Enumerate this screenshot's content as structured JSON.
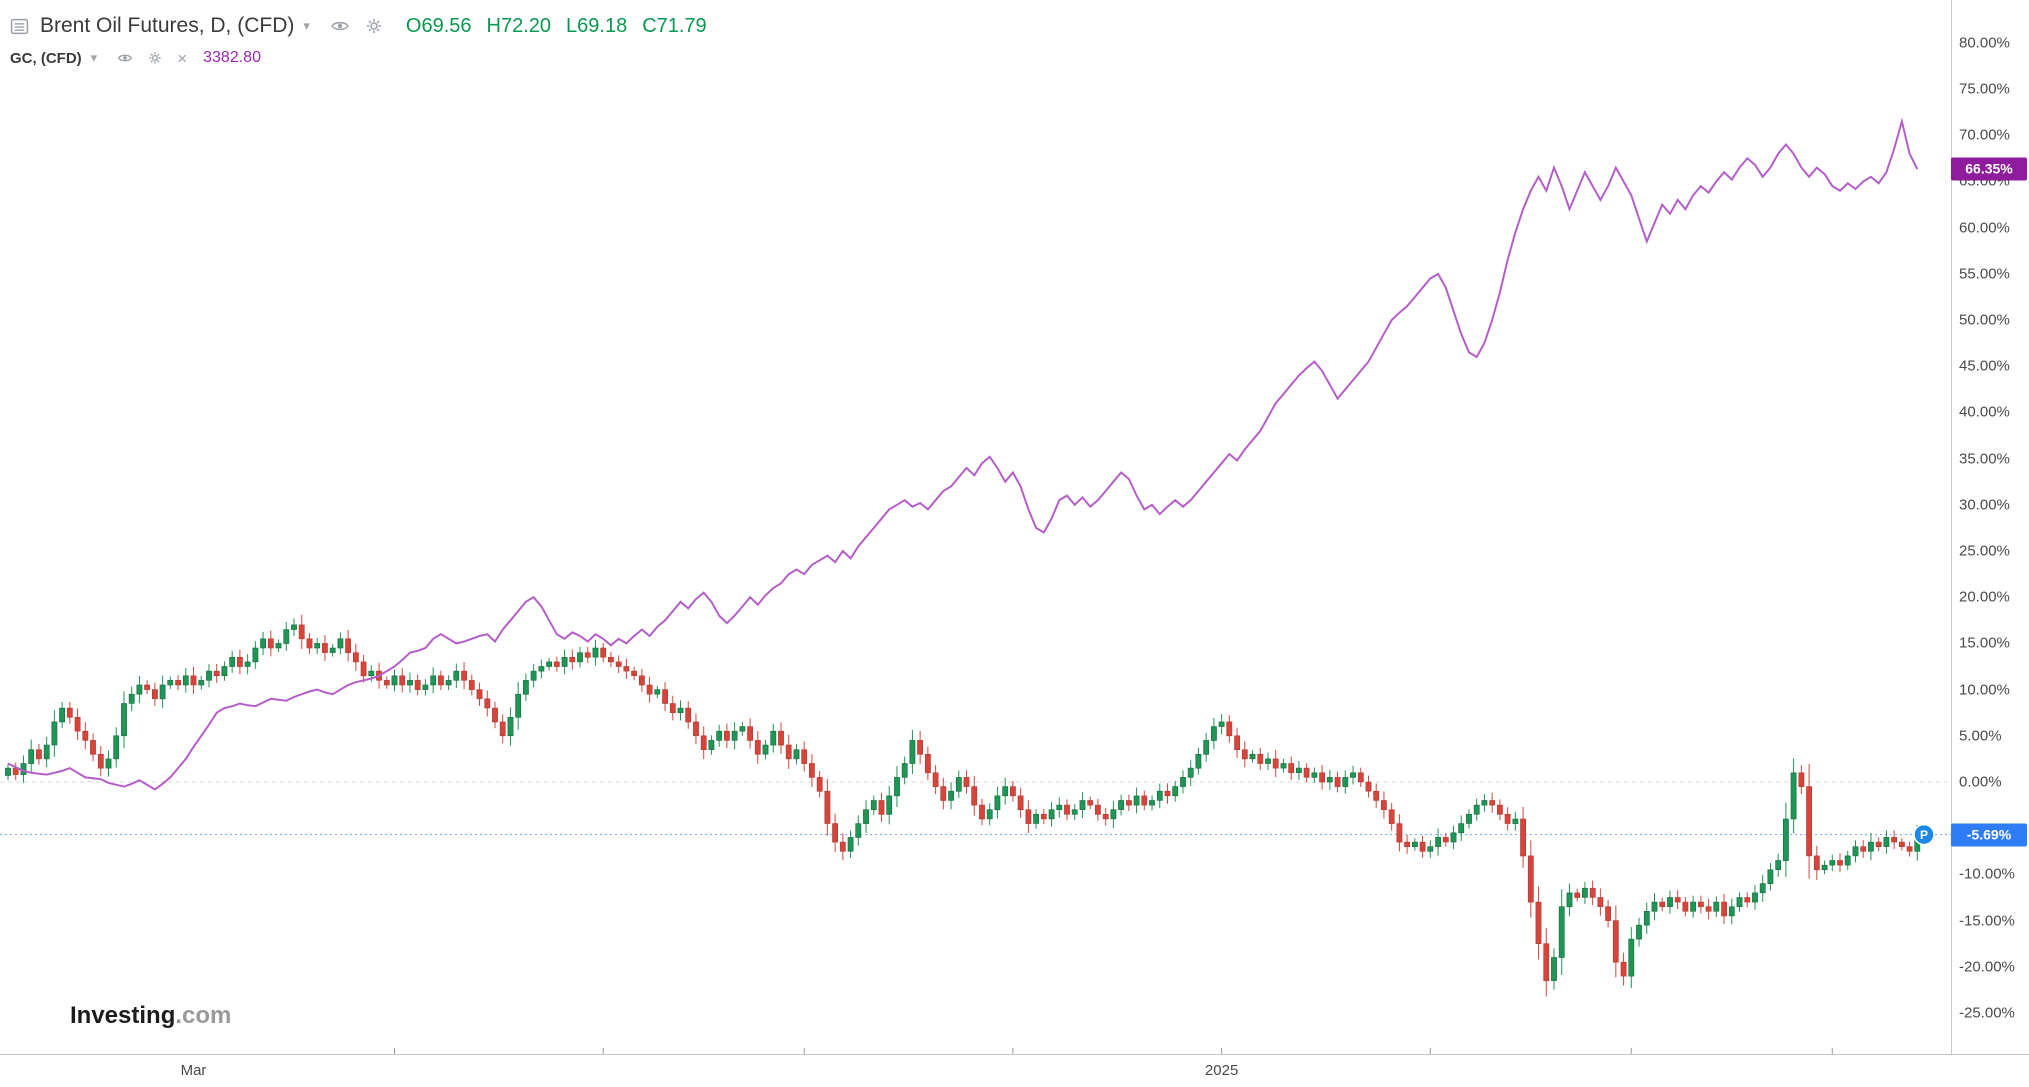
{
  "header": {
    "symbol_title": "Brent Oil Futures, D, (CFD)",
    "ohlc": [
      "O69.56",
      "H72.20",
      "L69.18",
      "C71.79"
    ],
    "overlay_title": "GC, (CFD)",
    "overlay_value": "3382.80"
  },
  "icons": {
    "caret": "▾",
    "close": "×"
  },
  "badges": {
    "gold": "66.35%",
    "brent": "-5.69%",
    "marker": "P"
  },
  "logo": {
    "main": "Investing",
    "suffix": ".com"
  },
  "axes": {
    "y_labels": [
      {
        "value": 80,
        "label": "80.00%"
      },
      {
        "value": 75,
        "label": "75.00%"
      },
      {
        "value": 70,
        "label": "70.00%"
      },
      {
        "value": 65,
        "label": "65.00%"
      },
      {
        "value": 60,
        "label": "60.00%"
      },
      {
        "value": 55,
        "label": "55.00%"
      },
      {
        "value": 50,
        "label": "50.00%"
      },
      {
        "value": 45,
        "label": "45.00%"
      },
      {
        "value": 40,
        "label": "40.00%"
      },
      {
        "value": 35,
        "label": "35.00%"
      },
      {
        "value": 30,
        "label": "30.00%"
      },
      {
        "value": 25,
        "label": "25.00%"
      },
      {
        "value": 20,
        "label": "20.00%"
      },
      {
        "value": 15,
        "label": "15.00%"
      },
      {
        "value": 10,
        "label": "10.00%"
      },
      {
        "value": 5,
        "label": "5.00%"
      },
      {
        "value": 0,
        "label": "0.00%"
      },
      {
        "value": -10,
        "label": "-10.00%"
      },
      {
        "value": -15,
        "label": "-15.00%"
      },
      {
        "value": -20,
        "label": "-20.00%"
      },
      {
        "value": -25,
        "label": "-25.00%"
      }
    ],
    "x_labels": [
      {
        "label": "Mar",
        "day": 24
      },
      {
        "label": "2025",
        "day": 157
      }
    ],
    "x_ticks_days": [
      50,
      77,
      103,
      130,
      157,
      184,
      210,
      236
    ]
  },
  "colors": {
    "up": "#1f9556",
    "up_stroke": "#146b3e",
    "down": "#d6453c",
    "down_stroke": "#b03830",
    "gold_line": "#b45fc8",
    "gold_badge_bg": "#8e1c9c",
    "brent_badge_bg": "#2f7df6",
    "last_price_line": "#6aa2f8",
    "marker_bg": "#1e88e5",
    "ohlc_text": "#089950",
    "overlay_value": "#9c27b0",
    "zero_line": "#d8d8d8",
    "axis_text": "#4a4a4a"
  },
  "chart_data": {
    "type": "mixed",
    "ylabel": "percent change",
    "ylim": [
      -27,
      82
    ],
    "grid": false,
    "legend_position": "top-left",
    "x_axis_labels": [
      "Mar",
      "2025"
    ],
    "series": [
      {
        "name": "Brent Oil Futures, D, (CFD)",
        "type": "candlestick",
        "unit": "% change",
        "last_value": -5.69,
        "last_label": "-5.69%",
        "last_ohlc_price": {
          "open": 69.56,
          "high": 72.2,
          "low": 69.18,
          "close": 71.79
        },
        "closes": [
          1.5,
          0.8,
          2.0,
          3.5,
          2.5,
          4.0,
          6.5,
          8.0,
          7.0,
          5.5,
          4.5,
          3.0,
          1.5,
          2.5,
          5.0,
          8.5,
          9.5,
          10.5,
          10.0,
          9.0,
          10.5,
          11.0,
          10.5,
          11.5,
          10.5,
          11.0,
          12.0,
          11.5,
          12.5,
          13.5,
          12.5,
          13.0,
          14.5,
          15.5,
          14.5,
          15.0,
          16.5,
          17.0,
          15.5,
          14.5,
          15.0,
          14.0,
          14.5,
          15.5,
          14.0,
          13.0,
          11.5,
          12.0,
          11.0,
          10.5,
          11.5,
          10.5,
          11.0,
          10.0,
          10.5,
          11.5,
          10.5,
          11.0,
          12.0,
          11.0,
          10.0,
          9.0,
          8.0,
          6.5,
          5.0,
          7.0,
          9.5,
          11.0,
          12.0,
          12.5,
          13.0,
          12.5,
          13.5,
          13.0,
          14.0,
          13.5,
          14.5,
          13.5,
          13.0,
          12.5,
          12.0,
          11.5,
          10.5,
          9.5,
          10.0,
          8.5,
          7.5,
          8.0,
          6.5,
          5.0,
          3.5,
          4.5,
          5.5,
          4.5,
          5.5,
          6.0,
          4.5,
          3.0,
          4.0,
          5.5,
          4.0,
          2.5,
          3.5,
          2.0,
          0.5,
          -1.0,
          -4.5,
          -6.5,
          -7.5,
          -6.0,
          -4.5,
          -3.0,
          -2.0,
          -3.5,
          -1.5,
          0.5,
          2.0,
          4.5,
          3.0,
          1.0,
          -0.5,
          -2.0,
          -1.0,
          0.5,
          -0.5,
          -2.5,
          -4.0,
          -3.0,
          -1.5,
          -0.5,
          -1.5,
          -3.0,
          -4.5,
          -3.5,
          -4.0,
          -3.0,
          -2.5,
          -3.5,
          -3.0,
          -2.0,
          -2.5,
          -3.5,
          -4.0,
          -3.0,
          -2.0,
          -2.5,
          -1.5,
          -2.5,
          -2.0,
          -1.0,
          -1.5,
          -0.5,
          0.5,
          1.5,
          3.0,
          4.5,
          6.0,
          6.5,
          5.0,
          3.5,
          2.5,
          3.0,
          2.0,
          2.5,
          1.5,
          2.0,
          1.0,
          1.5,
          0.5,
          1.0,
          0.0,
          0.5,
          -0.5,
          0.5,
          1.0,
          0.0,
          -1.0,
          -2.0,
          -3.0,
          -4.5,
          -6.5,
          -7.0,
          -6.5,
          -7.5,
          -7.0,
          -6.0,
          -6.5,
          -5.5,
          -4.5,
          -3.5,
          -2.5,
          -2.0,
          -2.5,
          -3.5,
          -4.5,
          -4.0,
          -8.0,
          -13.0,
          -17.5,
          -21.5,
          -19.0,
          -13.5,
          -12.0,
          -12.5,
          -11.5,
          -12.5,
          -13.5,
          -15.0,
          -19.5,
          -21.0,
          -17.0,
          -15.5,
          -14.0,
          -13.0,
          -13.5,
          -12.5,
          -13.0,
          -14.0,
          -13.0,
          -13.5,
          -14.0,
          -13.0,
          -14.5,
          -13.5,
          -12.5,
          -13.0,
          -12.0,
          -11.0,
          -9.5,
          -8.5,
          -4.0,
          1.0,
          -0.5,
          -8.0,
          -9.5,
          -9.0,
          -8.5,
          -9.0,
          -8.0,
          -7.0,
          -7.5,
          -6.5,
          -7.0,
          -6.0,
          -6.5,
          -7.0,
          -7.5,
          -5.69
        ]
      },
      {
        "name": "GC, (CFD)",
        "type": "line",
        "unit": "% change",
        "last_value": 66.35,
        "last_label": "66.35%",
        "last_price": 3382.8,
        "values": [
          2.0,
          1.6,
          1.2,
          1.0,
          0.9,
          0.8,
          1.0,
          1.2,
          1.5,
          1.0,
          0.5,
          0.4,
          0.3,
          -0.1,
          -0.3,
          -0.5,
          -0.2,
          0.2,
          -0.3,
          -0.8,
          -0.2,
          0.5,
          1.5,
          2.5,
          3.8,
          5.0,
          6.2,
          7.5,
          8.0,
          8.2,
          8.5,
          8.3,
          8.2,
          8.6,
          9.0,
          8.9,
          8.8,
          9.2,
          9.5,
          9.8,
          10.0,
          9.7,
          9.5,
          10.0,
          10.5,
          10.8,
          11.0,
          11.2,
          11.5,
          12.0,
          12.5,
          13.2,
          14.0,
          14.2,
          14.5,
          15.5,
          16.0,
          15.5,
          15.0,
          15.2,
          15.5,
          15.8,
          16.0,
          15.2,
          16.5,
          17.5,
          18.5,
          19.5,
          20.0,
          19.0,
          17.5,
          16.0,
          15.5,
          16.2,
          15.8,
          15.2,
          16.0,
          15.5,
          14.8,
          15.5,
          15.0,
          15.8,
          16.5,
          15.8,
          16.8,
          17.5,
          18.5,
          19.5,
          18.8,
          19.8,
          20.5,
          19.5,
          18.0,
          17.2,
          18.0,
          19.0,
          20.0,
          19.2,
          20.2,
          21.0,
          21.5,
          22.5,
          23.0,
          22.5,
          23.5,
          24.0,
          24.5,
          23.8,
          25.0,
          24.2,
          25.5,
          26.5,
          27.5,
          28.5,
          29.5,
          30.0,
          30.5,
          29.8,
          30.2,
          29.5,
          30.5,
          31.5,
          32.0,
          33.0,
          34.0,
          33.2,
          34.5,
          35.2,
          34.0,
          32.5,
          33.5,
          32.0,
          29.5,
          27.5,
          27.0,
          28.5,
          30.5,
          31.0,
          30.0,
          30.8,
          29.8,
          30.5,
          31.5,
          32.5,
          33.5,
          32.8,
          31.0,
          29.5,
          30.0,
          29.0,
          29.8,
          30.5,
          29.8,
          30.5,
          31.5,
          32.5,
          33.5,
          34.5,
          35.5,
          34.8,
          36.0,
          37.0,
          38.0,
          39.5,
          41.0,
          42.0,
          43.0,
          44.0,
          44.8,
          45.5,
          44.5,
          43.0,
          41.5,
          42.5,
          43.5,
          44.5,
          45.5,
          47.0,
          48.5,
          50.0,
          50.8,
          51.5,
          52.5,
          53.5,
          54.5,
          55.0,
          53.5,
          51.0,
          48.5,
          46.5,
          46.0,
          47.5,
          50.0,
          53.0,
          56.5,
          59.5,
          62.0,
          64.0,
          65.5,
          64.0,
          66.5,
          64.5,
          62.0,
          64.0,
          66.0,
          64.5,
          63.0,
          64.5,
          66.5,
          65.0,
          63.5,
          61.0,
          58.5,
          60.5,
          62.5,
          61.5,
          63.0,
          62.0,
          63.5,
          64.5,
          63.8,
          65.0,
          66.0,
          65.2,
          66.5,
          67.5,
          66.8,
          65.5,
          66.5,
          68.0,
          69.0,
          68.0,
          66.5,
          65.5,
          66.5,
          65.8,
          64.5,
          64.0,
          64.8,
          64.2,
          65.0,
          65.5,
          64.8,
          66.0,
          68.5,
          71.5,
          68.0,
          66.35
        ]
      }
    ]
  }
}
